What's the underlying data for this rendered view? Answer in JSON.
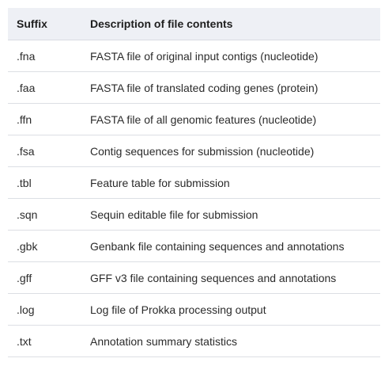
{
  "table": {
    "headers": {
      "suffix": "Suffix",
      "description": "Description of file contents"
    },
    "rows": [
      {
        "suffix": ".fna",
        "description": "FASTA file of original input contigs (nucleotide)"
      },
      {
        "suffix": ".faa",
        "description": "FASTA file of translated coding genes (protein)"
      },
      {
        "suffix": ".ffn",
        "description": "FASTA file of all genomic features (nucleotide)"
      },
      {
        "suffix": ".fsa",
        "description": "Contig sequences for submission (nucleotide)"
      },
      {
        "suffix": ".tbl",
        "description": "Feature table for submission"
      },
      {
        "suffix": ".sqn",
        "description": "Sequin editable file for submission"
      },
      {
        "suffix": ".gbk",
        "description": "Genbank file containing sequences and annotations"
      },
      {
        "suffix": ".gff",
        "description": "GFF v3 file containing sequences and annotations"
      },
      {
        "suffix": ".log",
        "description": "Log file of Prokka processing output"
      },
      {
        "suffix": ".txt",
        "description": "Annotation summary statistics"
      }
    ]
  }
}
